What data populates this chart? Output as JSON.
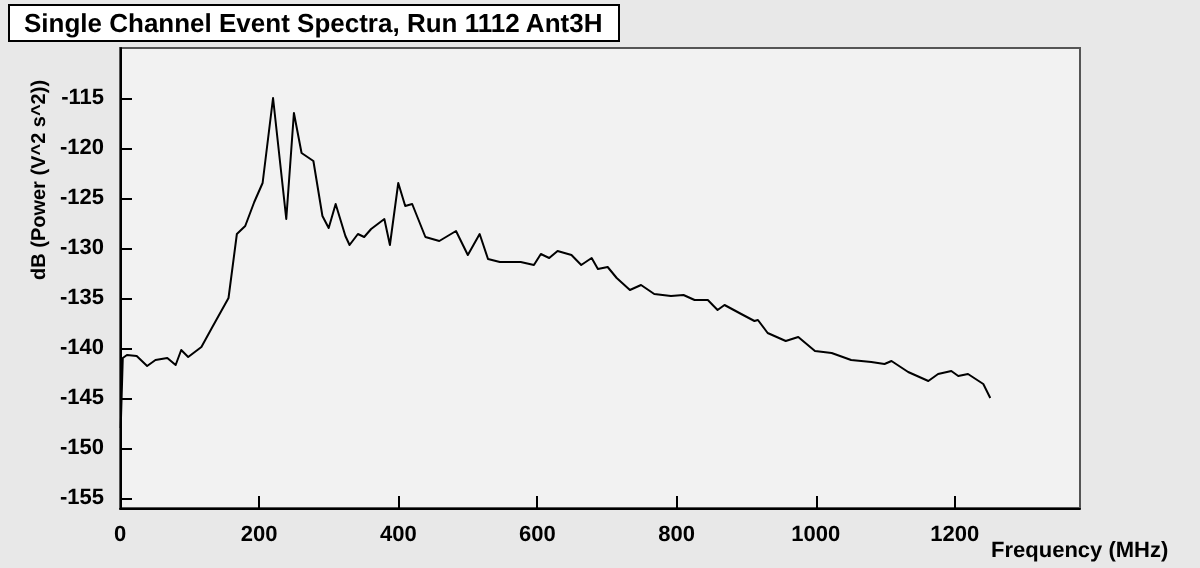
{
  "chart_data": {
    "type": "line",
    "title": "Single Channel Event Spectra, Run 1112 Ant3H",
    "xlabel": "Frequency (MHz)",
    "ylabel": "dB (Power (V^2 s^2))",
    "x": [
      1,
      4,
      10,
      24,
      39,
      51,
      68,
      80,
      88,
      98,
      117,
      132,
      156,
      168,
      180,
      193,
      205,
      220,
      239,
      250,
      261,
      278,
      291,
      300,
      310,
      324,
      330,
      342,
      351,
      361,
      380,
      388,
      400,
      410,
      420,
      439,
      459,
      483,
      500,
      517,
      529,
      546,
      576,
      595,
      605,
      617,
      629,
      649,
      663,
      678,
      687,
      701,
      714,
      733,
      749,
      768,
      792,
      810,
      826,
      845,
      859,
      869,
      893,
      912,
      917,
      931,
      957,
      975,
      999,
      1023,
      1051,
      1080,
      1099,
      1109,
      1133,
      1162,
      1176,
      1195,
      1205,
      1219,
      1241,
      1251
    ],
    "series": [
      {
        "color": "#000000",
        "values": [
          -148,
          -141,
          -140.7,
          -140.8,
          -141.8,
          -141.2,
          -141,
          -141.7,
          -140.2,
          -140.9,
          -139.9,
          -138,
          -135,
          -128.6,
          -127.8,
          -125.4,
          -123.5,
          -115,
          -127.1,
          -116.5,
          -120.5,
          -121.3,
          -126.8,
          -128,
          -125.6,
          -128.8,
          -129.7,
          -128.6,
          -128.9,
          -128.1,
          -127.1,
          -129.7,
          -123.5,
          -125.8,
          -125.6,
          -128.9,
          -129.3,
          -128.3,
          -130.7,
          -128.6,
          -131.1,
          -131.4,
          -131.4,
          -131.7,
          -130.6,
          -131,
          -130.3,
          -130.7,
          -131.7,
          -131,
          -132.1,
          -131.9,
          -133,
          -134.2,
          -133.7,
          -134.6,
          -134.8,
          -134.7,
          -135.2,
          -135.2,
          -136.2,
          -135.7,
          -136.6,
          -137.3,
          -137.2,
          -138.5,
          -139.3,
          -138.9,
          -140.3,
          -140.5,
          -141.2,
          -141.4,
          -141.6,
          -141.3,
          -142.4,
          -143.3,
          -142.6,
          -142.3,
          -142.8,
          -142.6,
          -143.6,
          -145
        ]
      }
    ],
    "xlim": [
      0,
      1380
    ],
    "xticks": [
      0,
      200,
      400,
      600,
      800,
      1000,
      1200
    ],
    "ylim": [
      -156,
      -110
    ],
    "yticks": [
      -155,
      -150,
      -145,
      -140,
      -135,
      -130,
      -125,
      -120,
      -115
    ],
    "grid": false,
    "marker": "none",
    "line_style": "solid"
  }
}
